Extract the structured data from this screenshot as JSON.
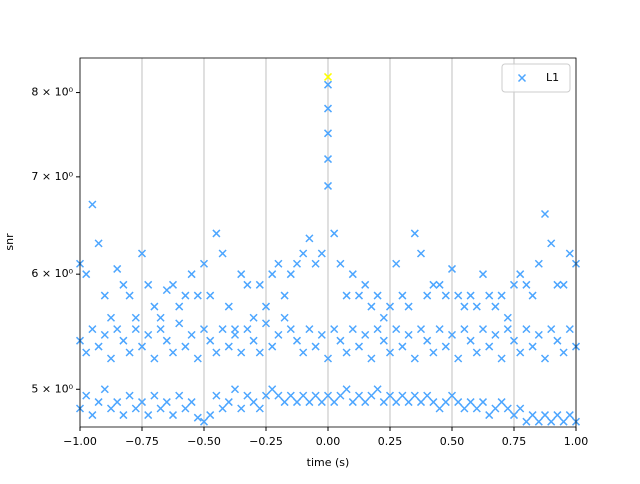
{
  "chart_data": {
    "type": "scatter",
    "xlabel": "time (s)",
    "ylabel": "snr",
    "yscale": "log",
    "legend": "upper right",
    "xgrid": true,
    "xlim": [
      -1,
      1
    ],
    "ylim": [
      4.71,
      8.45
    ],
    "xticks": [
      {
        "value": -1,
        "label": "−1.00"
      },
      {
        "value": -0.75,
        "label": "−0.75"
      },
      {
        "value": -0.5,
        "label": "−0.50"
      },
      {
        "value": -0.25,
        "label": "−0.25"
      },
      {
        "value": 0,
        "label": "0.00"
      },
      {
        "value": 0.25,
        "label": "0.25"
      },
      {
        "value": 0.5,
        "label": "0.50"
      },
      {
        "value": 0.75,
        "label": "0.75"
      },
      {
        "value": 1,
        "label": "1.00"
      }
    ],
    "yticks": [
      {
        "value": 5,
        "label": "5 × 10⁰"
      },
      {
        "value": 6,
        "label": "6 × 10⁰"
      },
      {
        "value": 7,
        "label": "7 × 10⁰"
      },
      {
        "value": 8,
        "label": "8 × 10⁰"
      }
    ],
    "series": [
      {
        "name": "L1",
        "color": "#4da6ff",
        "x": [
          -1,
          -0.975,
          -0.95,
          -0.925,
          -0.9,
          -0.875,
          -0.85,
          -0.825,
          -0.8,
          -0.775,
          -0.75,
          -0.725,
          -0.7,
          -0.675,
          -0.65,
          -0.625,
          -0.6,
          -0.575,
          -0.55,
          -0.525,
          -0.5,
          -0.475,
          -0.45,
          -0.425,
          -0.4,
          -0.375,
          -0.35,
          -0.325,
          -0.3,
          -0.275,
          -0.25,
          -0.225,
          -0.2,
          -0.175,
          -0.15,
          -0.125,
          -0.1,
          -0.075,
          -0.05,
          -0.025,
          0,
          0.025,
          0.05,
          0.075,
          0.1,
          0.125,
          0.15,
          0.175,
          0.2,
          0.225,
          0.25,
          0.275,
          0.3,
          0.325,
          0.35,
          0.375,
          0.4,
          0.425,
          0.45,
          0.475,
          0.5,
          0.525,
          0.55,
          0.575,
          0.6,
          0.625,
          0.65,
          0.675,
          0.7,
          0.725,
          0.75,
          0.775,
          0.8,
          0.825,
          0.85,
          0.875,
          0.9,
          0.925,
          0.95,
          0.975,
          1,
          -1,
          -0.975,
          -0.95,
          -0.925,
          -0.9,
          -0.875,
          -0.85,
          -0.825,
          -0.8,
          -0.775,
          -0.75,
          -0.725,
          -0.7,
          -0.675,
          -0.65,
          -0.625,
          -0.6,
          -0.575,
          -0.55,
          -0.525,
          -0.5,
          -0.475,
          -0.45,
          -0.425,
          -0.4,
          -0.375,
          -0.35,
          -0.325,
          -0.3,
          -0.275,
          -0.25,
          -0.225,
          -0.2,
          -0.175,
          -0.15,
          -0.125,
          -0.1,
          -0.075,
          -0.05,
          -0.025,
          0,
          0.025,
          0.05,
          0.075,
          0.1,
          0.125,
          0.15,
          0.175,
          0.2,
          0.225,
          0.25,
          0.275,
          0.3,
          0.325,
          0.35,
          0.375,
          0.4,
          0.425,
          0.45,
          0.475,
          0.5,
          0.525,
          0.55,
          0.575,
          0.6,
          0.625,
          0.65,
          0.675,
          0.7,
          0.725,
          0.75,
          0.775,
          0.8,
          0.825,
          0.85,
          0.875,
          0.9,
          0.925,
          0.95,
          0.975,
          1,
          -1,
          -0.975,
          -0.95,
          -0.925,
          -0.9,
          -0.875,
          -0.85,
          -0.825,
          -0.8,
          -0.775,
          -0.75,
          -0.725,
          -0.7,
          -0.675,
          -0.65,
          -0.625,
          -0.6,
          -0.575,
          -0.55,
          -0.525,
          -0.5,
          -0.475,
          -0.45,
          -0.425,
          -0.4,
          -0.375,
          -0.35,
          -0.325,
          -0.3,
          -0.275,
          -0.25,
          -0.225,
          -0.2,
          -0.175,
          -0.15,
          -0.125,
          -0.1,
          -0.075,
          -0.05,
          -0.025,
          0,
          0.025,
          0.05,
          0.075,
          0.1,
          0.125,
          0.15,
          0.175,
          0.2,
          0.225,
          0.25,
          0.275,
          0.3,
          0.325,
          0.35,
          0.375,
          0.4,
          0.425,
          0.45,
          0.475,
          0.5,
          0.525,
          0.55,
          0.575,
          0.6,
          0.625,
          0.65,
          0.675,
          0.7,
          0.725,
          0.75,
          0.775,
          0.8,
          0.825,
          0.85,
          0.875,
          0.9,
          0.925,
          0.95,
          0.975,
          1,
          0,
          0,
          0,
          0
        ],
        "values": [
          6.1,
          6.0,
          6.7,
          6.3,
          5.8,
          5.6,
          6.05,
          5.9,
          5.8,
          5.6,
          6.2,
          5.9,
          5.7,
          5.6,
          5.85,
          5.9,
          5.7,
          5.8,
          6.0,
          5.8,
          6.1,
          5.8,
          6.4,
          6.2,
          5.7,
          5.5,
          6.0,
          5.9,
          5.6,
          5.9,
          5.7,
          6.0,
          6.1,
          5.8,
          6.0,
          6.1,
          6.2,
          6.35,
          6.1,
          6.2,
          7.5,
          6.4,
          6.1,
          5.8,
          6.0,
          5.8,
          5.9,
          5.7,
          5.8,
          5.6,
          5.7,
          6.1,
          5.8,
          5.7,
          6.4,
          6.2,
          5.8,
          5.9,
          5.9,
          5.8,
          6.05,
          5.8,
          5.7,
          5.8,
          5.7,
          6.0,
          5.8,
          5.7,
          5.8,
          5.6,
          5.9,
          6.0,
          5.9,
          5.8,
          6.1,
          6.6,
          6.3,
          5.9,
          5.9,
          6.2,
          6.1,
          5.4,
          5.3,
          5.5,
          5.35,
          5.45,
          5.25,
          5.5,
          5.4,
          5.3,
          5.5,
          5.35,
          5.45,
          5.25,
          5.5,
          5.4,
          5.3,
          5.55,
          5.35,
          5.45,
          5.25,
          5.5,
          5.4,
          5.3,
          5.5,
          5.35,
          5.45,
          5.3,
          5.5,
          5.4,
          5.3,
          5.55,
          5.35,
          5.45,
          5.6,
          5.5,
          5.4,
          5.3,
          5.5,
          5.35,
          5.45,
          5.25,
          5.5,
          5.4,
          5.3,
          5.5,
          5.35,
          5.45,
          5.25,
          5.5,
          5.4,
          5.3,
          5.5,
          5.35,
          5.45,
          5.25,
          5.5,
          5.4,
          5.3,
          5.5,
          5.35,
          5.45,
          5.25,
          5.5,
          5.4,
          5.3,
          5.5,
          5.35,
          5.45,
          5.25,
          5.5,
          5.4,
          5.3,
          5.5,
          5.35,
          5.45,
          5.25,
          5.5,
          5.4,
          5.3,
          5.5,
          5.35,
          4.85,
          4.95,
          4.8,
          4.9,
          5.0,
          4.85,
          4.9,
          4.8,
          4.95,
          4.85,
          4.9,
          4.8,
          4.95,
          4.85,
          4.9,
          4.8,
          4.95,
          4.85,
          4.9,
          4.78,
          4.75,
          4.8,
          4.95,
          4.85,
          4.9,
          5.0,
          4.85,
          4.95,
          4.9,
          4.85,
          4.95,
          5.0,
          4.95,
          4.9,
          4.95,
          4.9,
          4.95,
          4.9,
          4.95,
          4.9,
          4.95,
          4.9,
          4.95,
          5.0,
          4.9,
          4.95,
          4.9,
          4.95,
          5.0,
          4.9,
          4.95,
          4.9,
          4.95,
          4.9,
          4.95,
          4.9,
          4.95,
          4.9,
          4.85,
          4.9,
          4.95,
          4.9,
          4.85,
          4.9,
          4.85,
          4.9,
          4.8,
          4.85,
          4.9,
          4.85,
          4.8,
          4.85,
          4.75,
          4.8,
          4.75,
          4.8,
          4.75,
          4.8,
          4.75,
          4.8,
          4.75,
          8.1,
          7.8,
          7.2,
          6.9
        ]
      }
    ],
    "highlight": {
      "x": 0,
      "y": 8.2,
      "color": "#ffff00"
    }
  }
}
